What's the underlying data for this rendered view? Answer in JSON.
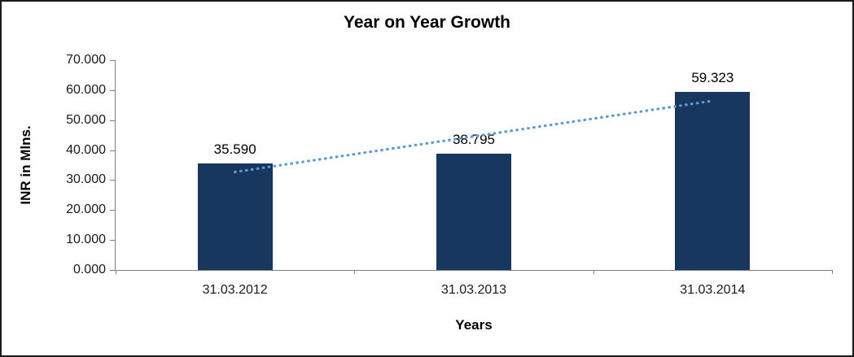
{
  "chart_data": {
    "type": "bar",
    "title": "Year on Year Growth",
    "categories": [
      "31.03.2012",
      "31.03.2013",
      "31.03.2014"
    ],
    "values": [
      35.59,
      38.795,
      59.323
    ],
    "value_labels": [
      "35.590",
      "38.795",
      "59.323"
    ],
    "xlabel": "Years",
    "ylabel": "INR in Mlns.",
    "ylim": [
      0,
      70
    ],
    "ytick_step": 10,
    "ytick_labels": [
      "0.000",
      "10.000",
      "20.000",
      "30.000",
      "40.000",
      "50.000",
      "60.000",
      "70.000"
    ],
    "grid": false,
    "legend": "none",
    "bar_color": "#17375E",
    "trendline": {
      "type": "linear",
      "style": "dotted",
      "color": "#5B9BD5"
    }
  }
}
